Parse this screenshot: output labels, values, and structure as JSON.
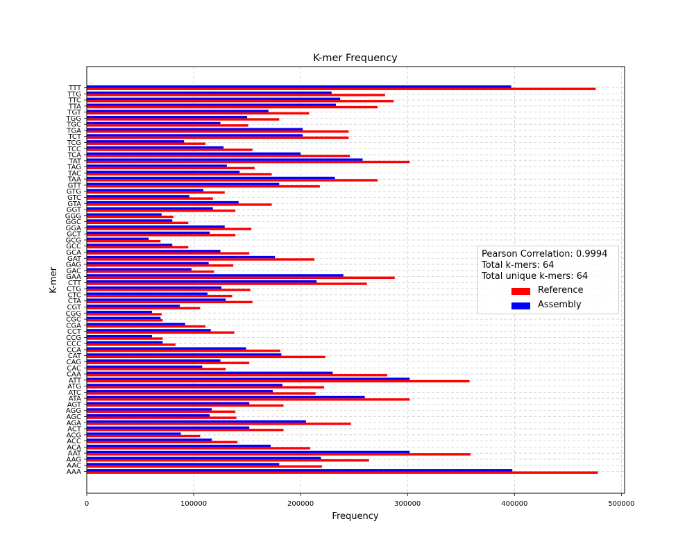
{
  "colors": {
    "reference": "#ff0000",
    "assembly": "#0000ff",
    "grid": "#cccccc"
  },
  "legend": {
    "stats": [
      "Pearson Correlation: 0.9994",
      "Total k-mers: 64",
      "Total unique k-mers: 64"
    ],
    "placement": "center-right"
  },
  "chart_data": {
    "type": "bar",
    "orientation": "horizontal",
    "title": "K-mer Frequency",
    "xlabel": "Frequency",
    "ylabel": "K-mer",
    "xlim": [
      0,
      503000
    ],
    "xticks": [
      0,
      100000,
      200000,
      300000,
      400000,
      500000
    ],
    "xtick_labels": [
      "0",
      "100000",
      "200000",
      "300000",
      "400000",
      "500000"
    ],
    "grid": true,
    "categories": [
      "AAA",
      "AAC",
      "AAG",
      "AAT",
      "ACA",
      "ACC",
      "ACG",
      "ACT",
      "AGA",
      "AGC",
      "AGG",
      "AGT",
      "ATA",
      "ATC",
      "ATG",
      "ATT",
      "CAA",
      "CAC",
      "CAG",
      "CAT",
      "CCA",
      "CCC",
      "CCG",
      "CCT",
      "CGA",
      "CGC",
      "CGG",
      "CGT",
      "CTA",
      "CTC",
      "CTG",
      "CTT",
      "GAA",
      "GAC",
      "GAG",
      "GAT",
      "GCA",
      "GCC",
      "GCG",
      "GCT",
      "GGA",
      "GGC",
      "GGG",
      "GGT",
      "GTA",
      "GTC",
      "GTG",
      "GTT",
      "TAA",
      "TAC",
      "TAG",
      "TAT",
      "TCA",
      "TCC",
      "TCG",
      "TCT",
      "TGA",
      "TGC",
      "TGG",
      "TGT",
      "TTA",
      "TTC",
      "TTG",
      "TTT"
    ],
    "series": [
      {
        "name": "Reference",
        "values": [
          478000,
          220000,
          264000,
          359000,
          209000,
          141000,
          106000,
          184000,
          247000,
          140000,
          139000,
          184000,
          302000,
          214000,
          222000,
          358000,
          281000,
          130000,
          152000,
          223000,
          181000,
          83000,
          71000,
          138000,
          111000,
          71000,
          70000,
          106000,
          155000,
          136000,
          153000,
          262000,
          288000,
          119000,
          137000,
          213000,
          152000,
          95000,
          69000,
          139000,
          154000,
          95000,
          81000,
          139000,
          173000,
          118000,
          129000,
          218000,
          272000,
          173000,
          157000,
          302000,
          246000,
          155000,
          111000,
          245000,
          245000,
          151000,
          180000,
          208000,
          272000,
          287000,
          279000,
          476000
        ]
      },
      {
        "name": "Assembly",
        "values": [
          398000,
          180000,
          219000,
          302000,
          172000,
          117000,
          88000,
          152000,
          205000,
          115000,
          117000,
          152000,
          260000,
          174000,
          183000,
          302000,
          230000,
          108000,
          125000,
          182000,
          149000,
          71000,
          61000,
          116000,
          92000,
          69000,
          61000,
          87000,
          130000,
          113000,
          126000,
          215000,
          240000,
          98000,
          114000,
          176000,
          125000,
          80000,
          58000,
          115000,
          129000,
          80000,
          70000,
          118000,
          142000,
          96000,
          109000,
          180000,
          232000,
          143000,
          131000,
          258000,
          200000,
          128000,
          91000,
          202000,
          202000,
          125000,
          150000,
          170000,
          233000,
          237000,
          229000,
          397000
        ]
      }
    ]
  }
}
